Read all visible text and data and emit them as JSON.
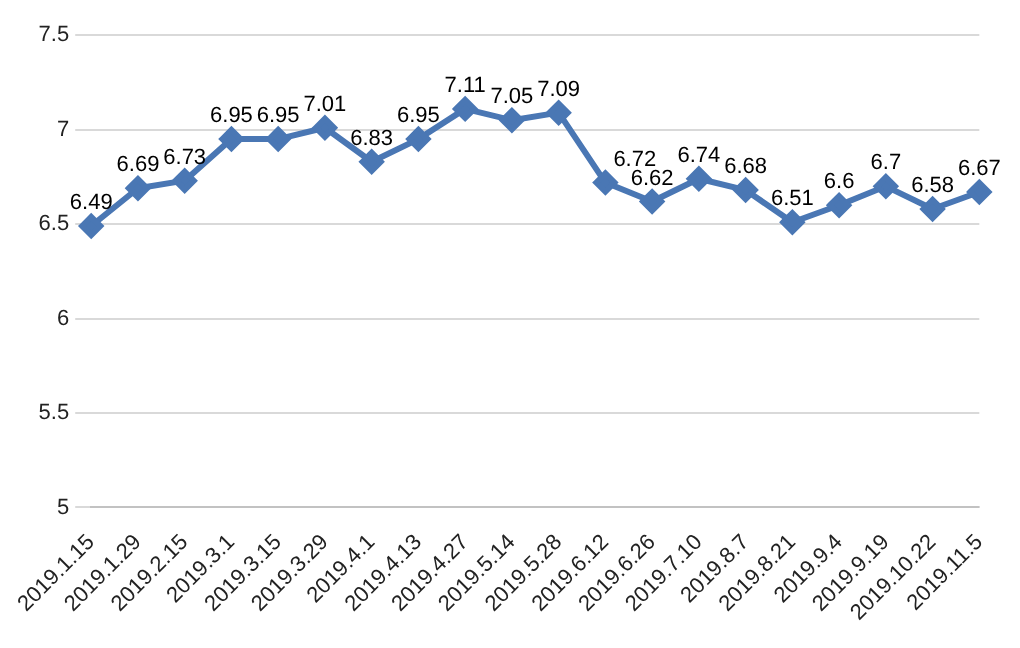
{
  "chart_data": {
    "type": "line",
    "categories": [
      "2019.1.15",
      "2019.1.29",
      "2019.2.15",
      "2019.3.1",
      "2019.3.15",
      "2019.3.29",
      "2019.4.1",
      "2019.4.13",
      "2019.4.27",
      "2019.5.14",
      "2019.5.28",
      "2019.6.12",
      "2019.6.26",
      "2019.7.10",
      "2019.8.7",
      "2019.8.21",
      "2019.9.4",
      "2019.9.19",
      "2019.10.22",
      "2019.11.5"
    ],
    "values": [
      6.49,
      6.69,
      6.73,
      6.95,
      6.95,
      7.01,
      6.83,
      6.95,
      7.11,
      7.05,
      7.09,
      6.72,
      6.62,
      6.74,
      6.68,
      6.51,
      6.6,
      6.7,
      6.58,
      6.67
    ],
    "color": "#4a77b4",
    "ylim": [
      5,
      7.5
    ],
    "yticks": [
      5,
      5.5,
      6,
      6.5,
      7,
      7.5
    ],
    "grid": "y",
    "marker": "diamond",
    "data_labels": true
  }
}
